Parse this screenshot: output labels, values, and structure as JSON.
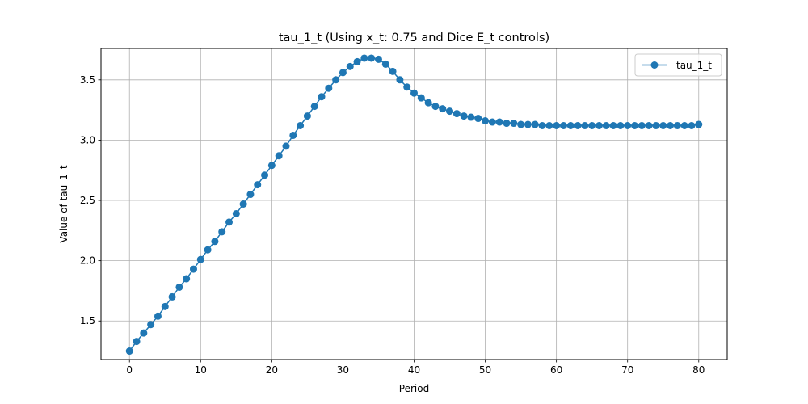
{
  "chart_data": {
    "type": "line",
    "title": "tau_1_t (Using x_t: 0.75 and Dice E_t controls)",
    "xlabel": "Period",
    "ylabel": "Value of tau_1_t",
    "xlim": [
      -4,
      84
    ],
    "ylim": [
      1.18,
      3.76
    ],
    "xticks": [
      0,
      10,
      20,
      30,
      40,
      50,
      60,
      70,
      80
    ],
    "yticks": [
      1.5,
      2.0,
      2.5,
      3.0,
      3.5
    ],
    "xtick_labels": [
      "0",
      "10",
      "20",
      "30",
      "40",
      "50",
      "60",
      "70",
      "80"
    ],
    "ytick_labels": [
      "1.5",
      "2.0",
      "2.5",
      "3.0",
      "3.5"
    ],
    "grid": true,
    "legend": "top-right",
    "series": [
      {
        "name": "tau_1_t",
        "color": "#1f77b4",
        "marker": "circle",
        "x": [
          0,
          1,
          2,
          3,
          4,
          5,
          6,
          7,
          8,
          9,
          10,
          11,
          12,
          13,
          14,
          15,
          16,
          17,
          18,
          19,
          20,
          21,
          22,
          23,
          24,
          25,
          26,
          27,
          28,
          29,
          30,
          31,
          32,
          33,
          34,
          35,
          36,
          37,
          38,
          39,
          40,
          41,
          42,
          43,
          44,
          45,
          46,
          47,
          48,
          49,
          50,
          51,
          52,
          53,
          54,
          55,
          56,
          57,
          58,
          59,
          60,
          61,
          62,
          63,
          64,
          65,
          66,
          67,
          68,
          69,
          70,
          71,
          72,
          73,
          74,
          75,
          76,
          77,
          78,
          79,
          80
        ],
        "values": [
          1.25,
          1.33,
          1.4,
          1.47,
          1.54,
          1.62,
          1.7,
          1.78,
          1.85,
          1.93,
          2.01,
          2.09,
          2.16,
          2.24,
          2.32,
          2.39,
          2.47,
          2.55,
          2.63,
          2.71,
          2.79,
          2.87,
          2.95,
          3.04,
          3.12,
          3.2,
          3.28,
          3.36,
          3.43,
          3.5,
          3.56,
          3.61,
          3.65,
          3.68,
          3.68,
          3.67,
          3.63,
          3.57,
          3.5,
          3.44,
          3.39,
          3.35,
          3.31,
          3.28,
          3.26,
          3.24,
          3.22,
          3.2,
          3.19,
          3.18,
          3.16,
          3.15,
          3.15,
          3.14,
          3.14,
          3.13,
          3.13,
          3.13,
          3.12,
          3.12,
          3.12,
          3.12,
          3.12,
          3.12,
          3.12,
          3.12,
          3.12,
          3.12,
          3.12,
          3.12,
          3.12,
          3.12,
          3.12,
          3.12,
          3.12,
          3.12,
          3.12,
          3.12,
          3.12,
          3.12,
          3.13
        ]
      }
    ]
  }
}
